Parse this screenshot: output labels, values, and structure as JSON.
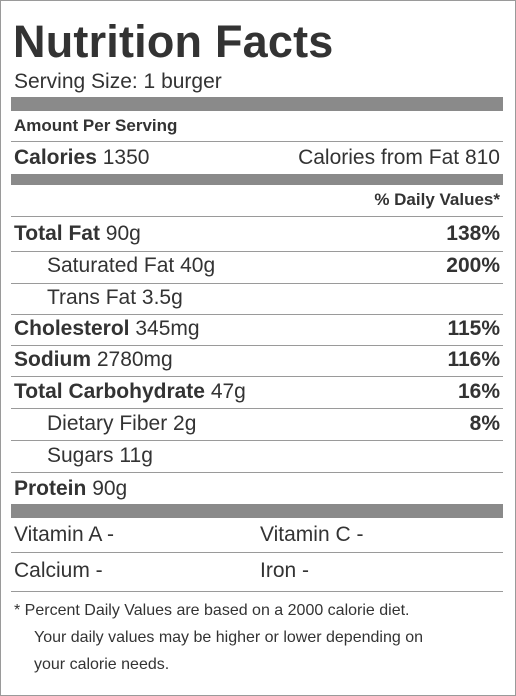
{
  "title": "Nutrition Facts",
  "serving_size": "Serving Size: 1 burger",
  "amount_per_serving": "Amount Per Serving",
  "calories": {
    "label": "Calories",
    "value": "1350"
  },
  "calories_from_fat": {
    "label": "Calories from Fat",
    "value": "810"
  },
  "daily_values_header": "% Daily Values*",
  "nutrients": [
    {
      "label": "Total Fat",
      "amount": "90g",
      "dv": "138%"
    },
    {
      "label": "Saturated Fat",
      "amount": "40g",
      "dv": "200%"
    },
    {
      "label": "Trans Fat",
      "amount": "3.5g",
      "dv": ""
    },
    {
      "label": "Cholesterol",
      "amount": "345mg",
      "dv": "115%"
    },
    {
      "label": "Sodium",
      "amount": "2780mg",
      "dv": "116%"
    },
    {
      "label": "Total Carbohydrate",
      "amount": "47g",
      "dv": "16%"
    },
    {
      "label": "Dietary Fiber",
      "amount": "2g",
      "dv": "8%"
    },
    {
      "label": "Sugars",
      "amount": "11g",
      "dv": ""
    },
    {
      "label": "Protein",
      "amount": "90g",
      "dv": ""
    }
  ],
  "vitamins": {
    "vitamin_a": "Vitamin A -",
    "vitamin_c": "Vitamin C -",
    "calcium": "Calcium -",
    "iron": "Iron -"
  },
  "footnote": {
    "line1": "*  Percent Daily Values are based on a 2000 calorie diet.",
    "line2": "Your daily values may be higher or lower depending on",
    "line3": "your calorie needs."
  }
}
